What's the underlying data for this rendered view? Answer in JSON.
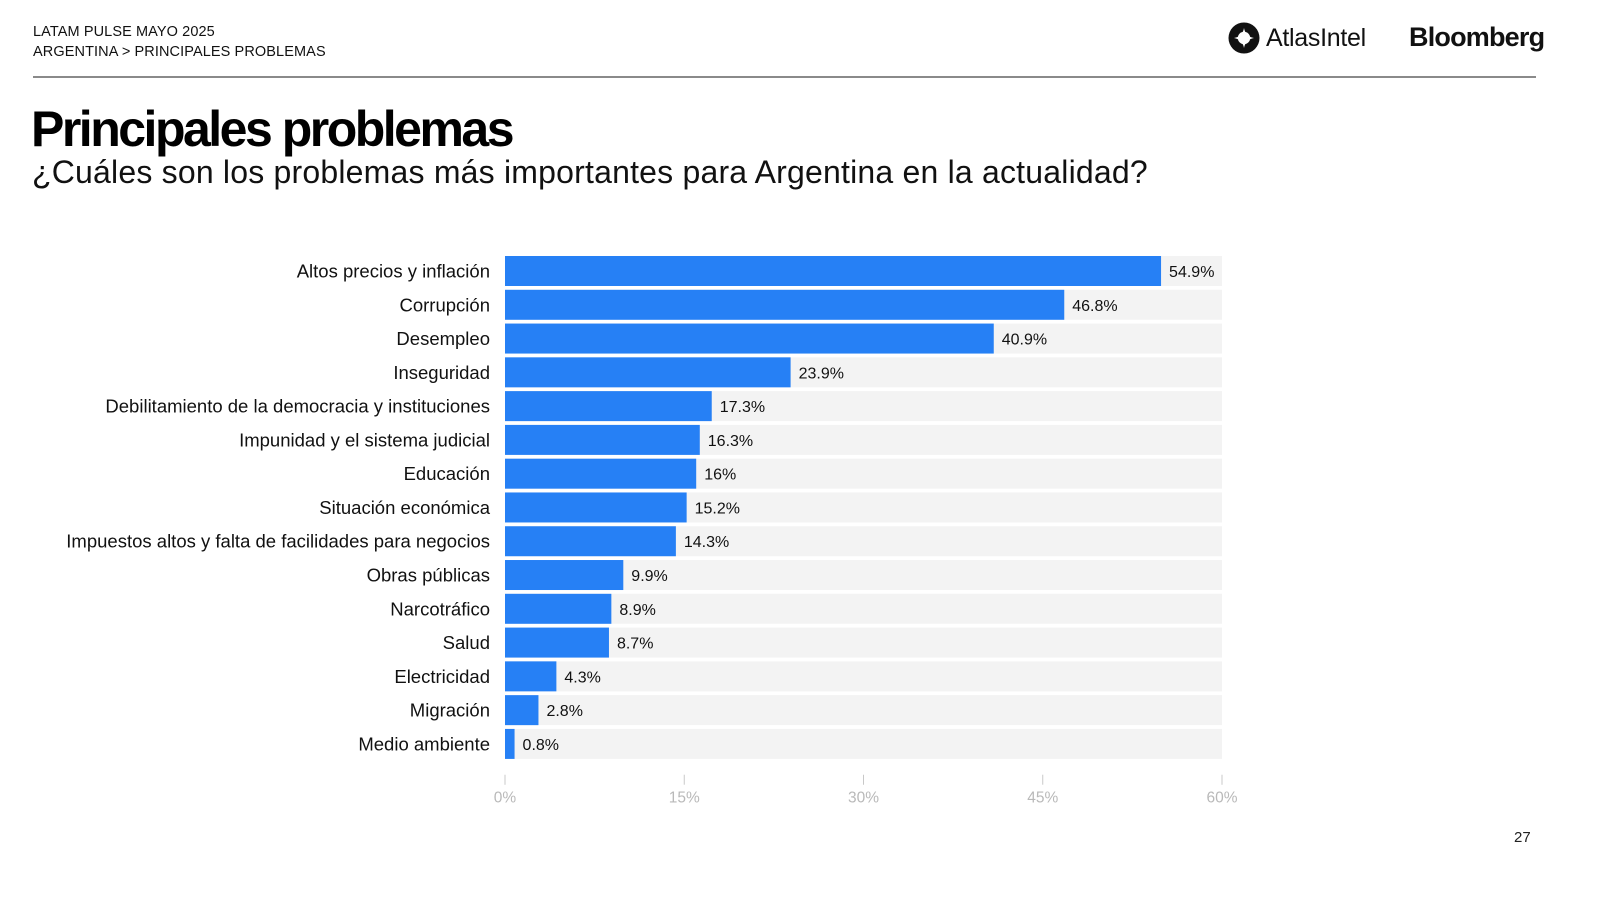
{
  "header": {
    "line1": "LATAM PULSE MAYO 2025",
    "line2": "ARGENTINA > PRINCIPALES PROBLEMAS"
  },
  "logos": {
    "atlas": "AtlasIntel",
    "bloomberg": "Bloomberg"
  },
  "title": "Principales problemas",
  "subtitle": "¿Cuáles son los problemas más importantes para Argentina en la actualidad?",
  "page_number": "27",
  "colors": {
    "bar": "#2680f5",
    "track": "#f3f3f3",
    "tick": "#c8c8c8"
  },
  "chart_data": {
    "type": "bar",
    "orientation": "horizontal",
    "title": "Principales problemas",
    "subtitle": "¿Cuáles son los problemas más importantes para Argentina en la actualidad?",
    "xlabel": "",
    "ylabel": "",
    "xlim": [
      0,
      60
    ],
    "ticks": [
      0,
      15,
      30,
      45,
      60
    ],
    "tick_labels": [
      "0%",
      "15%",
      "30%",
      "45%",
      "60%"
    ],
    "grid": false,
    "legend": "none",
    "categories": [
      "Altos precios y inflación",
      "Corrupción",
      "Desempleo",
      "Inseguridad",
      "Debilitamiento de la democracia y instituciones",
      "Impunidad y el sistema judicial",
      "Educación",
      "Situación económica",
      "Impuestos altos y falta de facilidades para negocios",
      "Obras públicas",
      "Narcotráfico",
      "Salud",
      "Electricidad",
      "Migración",
      "Medio ambiente"
    ],
    "values": [
      54.9,
      46.8,
      40.9,
      23.9,
      17.3,
      16.3,
      16,
      15.2,
      14.3,
      9.9,
      8.9,
      8.7,
      4.3,
      2.8,
      0.8
    ],
    "value_labels": [
      "54.9%",
      "46.8%",
      "40.9%",
      "23.9%",
      "17.3%",
      "16.3%",
      "16%",
      "15.2%",
      "14.3%",
      "9.9%",
      "8.9%",
      "8.7%",
      "4.3%",
      "2.8%",
      "0.8%"
    ]
  }
}
